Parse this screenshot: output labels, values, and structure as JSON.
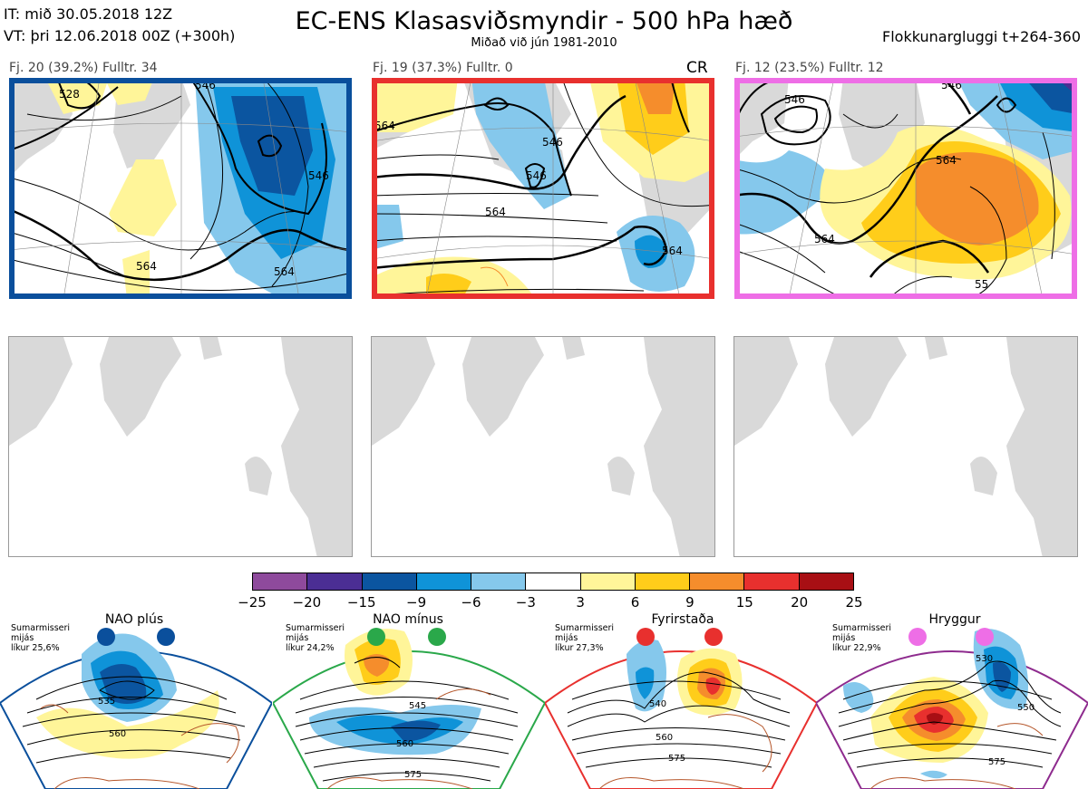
{
  "header": {
    "it_line": "IT: mið 30.05.2018 12Z",
    "vt_line": "VT: þri 12.06.2018 00Z  (+300h)",
    "title": "EC-ENS Klasasviðsmyndir - 500 hPa hæð",
    "subtitle": "Miðað við jún 1981-2010",
    "window": "Flokkunargluggi t+264-360"
  },
  "clusters": [
    {
      "label": "Fj. 20 (39.2%)   Fulltr. 34",
      "border_color": "#0a4f9c",
      "contours": [
        "528",
        "546",
        "564",
        "564",
        "546"
      ]
    },
    {
      "label": "Fj. 19 (37.3%)   Fulltr. 0",
      "border_color": "#e8302e",
      "tag": "CR",
      "contours": [
        "564",
        "546",
        "546",
        "564",
        "564"
      ]
    },
    {
      "label": "Fj. 12 (23.5%)   Fulltr. 12",
      "border_color": "#ee6ee6",
      "contours": [
        "546",
        "546",
        "564",
        "564",
        "55"
      ]
    }
  ],
  "colorbar": {
    "colors": [
      "#8e4a9c",
      "#4b2e94",
      "#0b55a0",
      "#0f93d8",
      "#85c8ec",
      "#ffffff",
      "#fff599",
      "#ffcd1a",
      "#f58d2c",
      "#e8302e",
      "#a80f14"
    ],
    "ticks": [
      "−25",
      "−20",
      "−15",
      "−9",
      "−6",
      "−3",
      "3",
      "6",
      "9",
      "15",
      "20",
      "25"
    ]
  },
  "regimes": [
    {
      "name": "NAO plús",
      "color": "#0a4f9c",
      "season": "Sumarmisseri",
      "mean": "mijás",
      "prob": "líkur 25,6%",
      "contours": [
        "535",
        "560"
      ]
    },
    {
      "name": "NAO mínus",
      "color": "#2aa84a",
      "season": "Sumarmisseri",
      "mean": "mijás",
      "prob": "líkur 24,2%",
      "contours": [
        "545",
        "560",
        "575"
      ]
    },
    {
      "name": "Fyrirstaða",
      "color": "#e8302e",
      "season": "Sumarmisseri",
      "mean": "mijás",
      "prob": "líkur 27,3%",
      "contours": [
        "540",
        "560",
        "575"
      ]
    },
    {
      "name": "Hryggur",
      "color": "#ee6ee6",
      "season": "Sumarmisseri",
      "mean": "mijás",
      "prob": "líkur 22,9%",
      "contours": [
        "530",
        "550",
        "575"
      ]
    }
  ]
}
